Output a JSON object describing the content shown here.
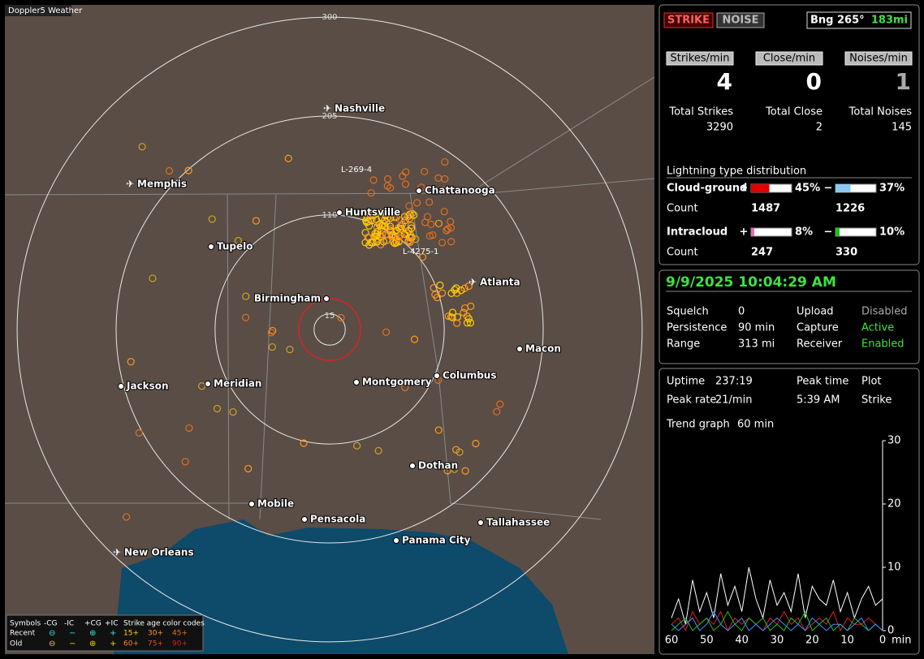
{
  "map": {
    "app_title": "Doppler5 Weather",
    "range_rings": [
      300,
      205,
      110,
      15
    ],
    "cities": [
      "Nashville",
      "Memphis",
      "Chattanooga",
      "Huntsville",
      "Tupelo",
      "Atlanta",
      "Birmingham",
      "Macon",
      "Jackson",
      "Meridian",
      "Montgomery",
      "Columbus",
      "Dothan",
      "Mobile",
      "Pensacola",
      "Tallahassee",
      "Panama City",
      "New Orleans"
    ],
    "storm_tracks": [
      "L-269-4",
      "L-4275-1"
    ],
    "legend": {
      "symbols_title": "Symbols",
      "symbols": [
        "-CG",
        "-IC",
        "+CG",
        "+IC"
      ],
      "age_title": "Strike age color codes",
      "rows": [
        "Recent",
        "Old"
      ],
      "ages_recent": [
        "15+",
        "30+",
        "45+"
      ],
      "ages_old": [
        "60+",
        "75+",
        "90+"
      ]
    }
  },
  "status": {
    "buttons": [
      "STRIKE",
      "NOISE"
    ],
    "bearing": "Bng 265°",
    "distance": "183mi",
    "rates": [
      {
        "label": "Strikes/min",
        "value": 4
      },
      {
        "label": "Close/min",
        "value": 0
      },
      {
        "label": "Noises/min",
        "value": 1
      }
    ],
    "totals": [
      {
        "label": "Total Strikes",
        "value": 3290
      },
      {
        "label": "Total Close",
        "value": 2
      },
      {
        "label": "Total Noises",
        "value": 145
      }
    ],
    "distribution": {
      "title": "Lightning type distribution",
      "count_label": "Count",
      "types": [
        {
          "name": "Cloud-ground",
          "positive": {
            "sign": "+",
            "percent": {
              "value": 45,
              "label": "45%"
            },
            "count": 1487
          },
          "negative": {
            "sign": "−",
            "percent": {
              "value": 37,
              "label": "37%"
            },
            "count": 1226
          }
        },
        {
          "name": "Intracloud",
          "positive": {
            "sign": "+",
            "percent": {
              "value": 8,
              "label": "8%"
            },
            "count": 247
          },
          "negative": {
            "sign": "−",
            "percent": {
              "value": 10,
              "label": "10%"
            },
            "count": 330
          }
        }
      ]
    }
  },
  "settings": {
    "datetime": "9/9/2025 10:04:29 AM",
    "items": [
      [
        "Squelch",
        "0"
      ],
      [
        "Persistence",
        "90 min"
      ],
      [
        "Range",
        "313 mi"
      ],
      [
        "Upload",
        "Disabled"
      ],
      [
        "Capture",
        "Active"
      ],
      [
        "Receiver",
        "Enabled"
      ]
    ]
  },
  "stats": {
    "items": [
      [
        "Uptime",
        "237:19"
      ],
      [
        "Peak time",
        "5:39 AM"
      ],
      [
        "Plot",
        "Strike"
      ],
      [
        "Peak rate",
        "21/min"
      ]
    ],
    "trend_label": "Trend graph",
    "trend_window": "60 min",
    "trend": {
      "type": "line",
      "x": [
        60,
        58,
        56,
        54,
        52,
        50,
        48,
        46,
        44,
        42,
        40,
        38,
        36,
        34,
        32,
        30,
        28,
        26,
        24,
        22,
        20,
        18,
        16,
        14,
        12,
        10,
        8,
        6,
        4,
        2,
        0
      ],
      "xlim": [
        60,
        0
      ],
      "ylim": [
        0,
        30
      ],
      "xticks": [
        60,
        50,
        40,
        30,
        20,
        10,
        0
      ],
      "yticks": [
        30,
        20,
        10,
        0
      ],
      "x_unit": "min",
      "series": [
        {
          "color": "#ffffff",
          "values": [
            2,
            5,
            1,
            8,
            3,
            6,
            2,
            9,
            4,
            7,
            3,
            10,
            5,
            2,
            8,
            4,
            6,
            3,
            9,
            2,
            7,
            5,
            4,
            8,
            3,
            6,
            2,
            5,
            7,
            4,
            5
          ]
        },
        {
          "color": "#e02020",
          "values": [
            1,
            2,
            0,
            3,
            1,
            2,
            1,
            3,
            0,
            2,
            1,
            2,
            1,
            0,
            2,
            1,
            3,
            1,
            2,
            0,
            1,
            2,
            1,
            3,
            0,
            2,
            1,
            1,
            2,
            1,
            0
          ]
        },
        {
          "color": "#20c020",
          "values": [
            0,
            1,
            2,
            0,
            1,
            2,
            0,
            1,
            3,
            1,
            0,
            2,
            1,
            2,
            0,
            1,
            0,
            2,
            1,
            3,
            0,
            1,
            2,
            0,
            1,
            0,
            2,
            1,
            0,
            1,
            0
          ]
        },
        {
          "color": "#4090ff",
          "values": [
            1,
            0,
            1,
            2,
            0,
            1,
            3,
            1,
            0,
            1,
            2,
            0,
            1,
            0,
            1,
            2,
            1,
            0,
            1,
            0,
            2,
            1,
            0,
            1,
            1,
            0,
            1,
            2,
            0,
            1,
            0
          ]
        }
      ]
    }
  }
}
